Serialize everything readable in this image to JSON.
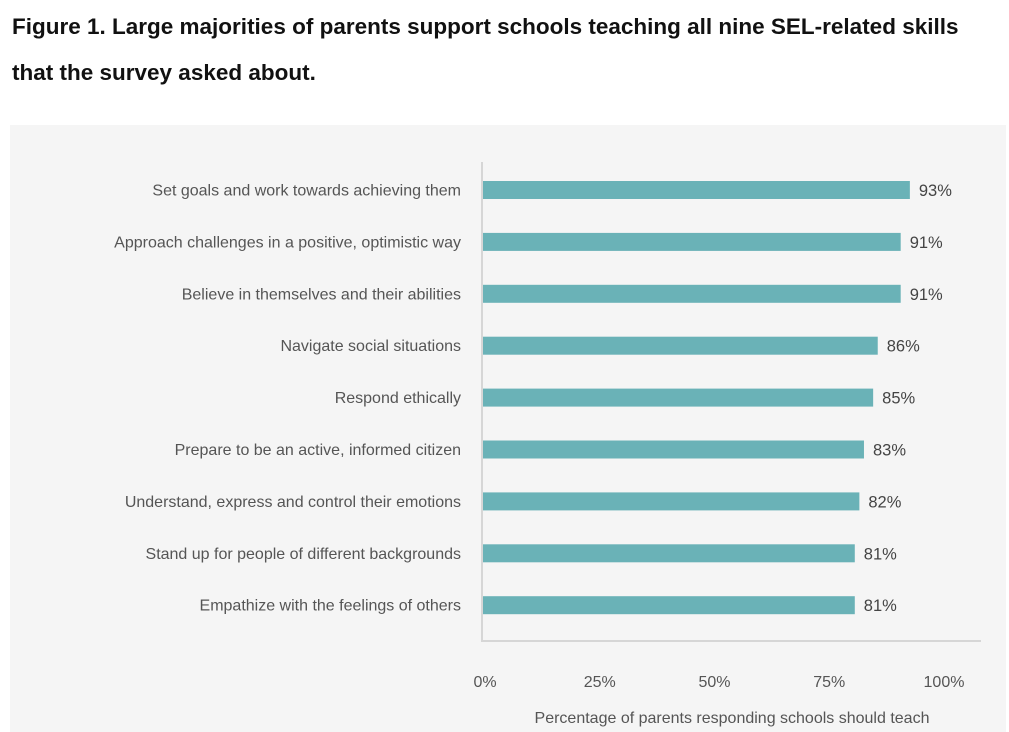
{
  "chart_data": {
    "type": "bar",
    "orientation": "horizontal",
    "title": "Figure 1. Large majorities of parents support schools teaching all nine SEL-related skills that the survey asked about.",
    "categories": [
      "Set goals and work towards achieving them",
      "Approach challenges in a positive, optimistic way",
      "Believe in themselves and their abilities",
      "Navigate social situations",
      "Respond ethically",
      "Prepare to be an active, informed citizen",
      "Understand, express and control their emotions",
      "Stand up for people of different backgrounds",
      "Empathize with the feelings of others"
    ],
    "values": [
      93,
      91,
      91,
      86,
      85,
      83,
      82,
      81,
      81
    ],
    "value_labels": [
      "93%",
      "91%",
      "91%",
      "86%",
      "85%",
      "83%",
      "82%",
      "81%",
      "81%"
    ],
    "xlabel": "Percentage of parents responding schools should teach",
    "ylabel": "",
    "xlim": [
      0,
      100
    ],
    "xticks": [
      0,
      25,
      50,
      75,
      100
    ],
    "xtick_labels": [
      "0%",
      "25%",
      "50%",
      "75%",
      "100%"
    ],
    "grid": false,
    "bar_color": "#6ab2b7"
  }
}
